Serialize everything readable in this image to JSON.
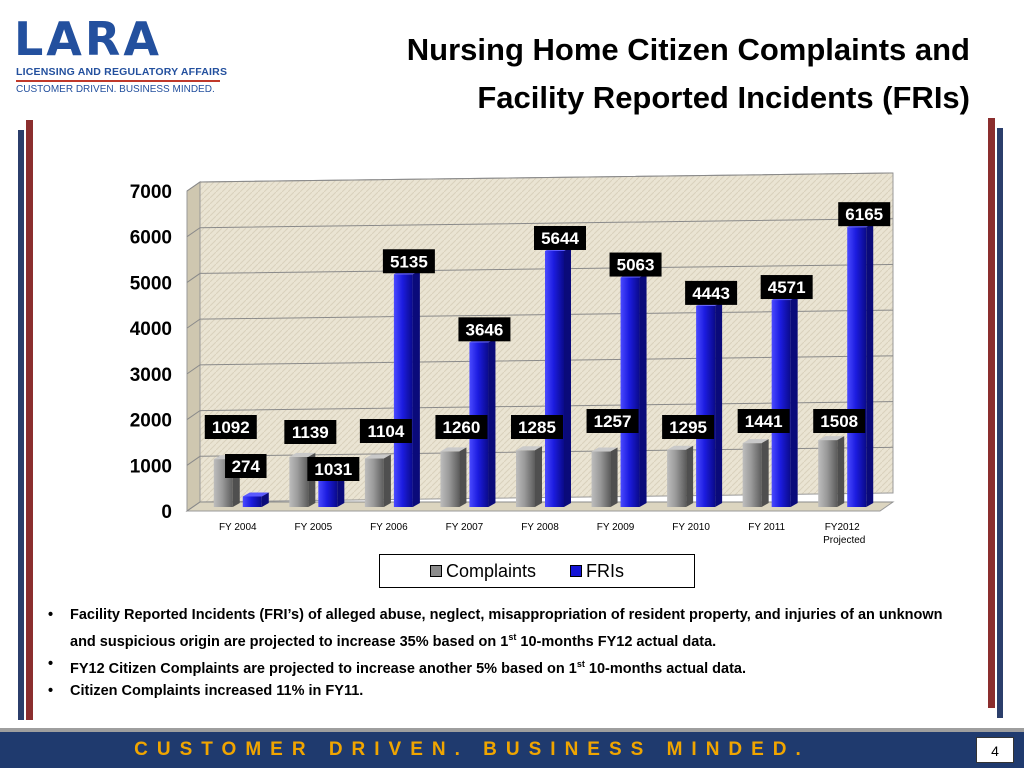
{
  "header": {
    "title_line1": "Nursing Home Citizen Complaints and",
    "title_line2": "Facility Reported Incidents (FRIs)"
  },
  "logo": {
    "word": "LARA",
    "line1": "LICENSING AND REGULATORY AFFAIRS",
    "line2": "CUSTOMER DRIVEN. BUSINESS MINDED."
  },
  "chart_data": {
    "type": "bar",
    "categories": [
      "FY 2004",
      "FY 2005",
      "FY 2006",
      "FY 2007",
      "FY 2008",
      "FY 2009",
      "FY 2010",
      "FY 2011",
      "FY2012"
    ],
    "category_sublabels": [
      "",
      "",
      "",
      "",
      "",
      "",
      "",
      "",
      "Projected"
    ],
    "series": [
      {
        "name": "Complaints",
        "color": "#8c8c8c",
        "values": [
          1092,
          1139,
          1104,
          1260,
          1285,
          1257,
          1295,
          1441,
          1508
        ]
      },
      {
        "name": "FRIs",
        "color": "#1414d6",
        "values": [
          274,
          1031,
          5135,
          3646,
          5644,
          5063,
          4443,
          4571,
          6165
        ]
      }
    ],
    "yticks": [
      0,
      1000,
      2000,
      3000,
      4000,
      5000,
      6000,
      7000
    ],
    "ylim": [
      0,
      7000
    ],
    "grid": true,
    "legend_position": "bottom"
  },
  "bullets": [
    {
      "pre": "Facility Reported Incidents (FRI’s) of alleged abuse, neglect, misappropriation of resident property, and injuries of an unknown and suspicious origin are projected to increase 35% based on 1",
      "sup": "st",
      "post": " 10-months FY12 actual data."
    },
    {
      "pre": "FY12 Citizen Complaints are projected to increase another 5% based on 1",
      "sup": "st",
      "post": " 10-months actual data."
    },
    {
      "pre": "Citizen Complaints increased 11% in FY11.",
      "sup": "",
      "post": ""
    }
  ],
  "footer": {
    "tagline": "CUSTOMER DRIVEN. BUSINESS MINDED.",
    "page_number": "4"
  }
}
